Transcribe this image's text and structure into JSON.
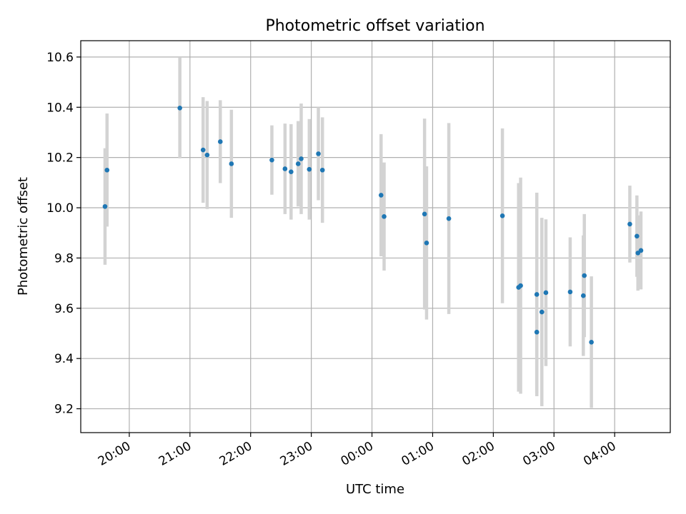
{
  "chart_data": {
    "type": "scatter",
    "title": "Photometric offset variation",
    "xlabel": "UTC time",
    "ylabel": "Photometric offset",
    "x_unit": "UTC time (hh:mm)",
    "x_ticks": [
      "20:00",
      "21:00",
      "22:00",
      "23:00",
      "00:00",
      "01:00",
      "02:00",
      "03:00",
      "04:00"
    ],
    "y_ticks": [
      "9.2",
      "9.4",
      "9.6",
      "9.8",
      "10.0",
      "10.2",
      "10.4",
      "10.6"
    ],
    "xlim": [
      "19:12",
      "04:55"
    ],
    "ylim": [
      9.105,
      10.665
    ],
    "grid": true,
    "legend": "none",
    "colors": {
      "point": "#1f77b4",
      "errorbar": "#d3d3d3"
    },
    "points": [
      {
        "x": "19:36",
        "y": 10.005,
        "yerr": 0.232
      },
      {
        "x": "19:38",
        "y": 10.15,
        "yerr": 0.225
      },
      {
        "x": "20:50",
        "y": 10.397,
        "yerr": 0.2
      },
      {
        "x": "21:13",
        "y": 10.23,
        "yerr": 0.21
      },
      {
        "x": "21:17",
        "y": 10.21,
        "yerr": 0.215
      },
      {
        "x": "21:30",
        "y": 10.263,
        "yerr": 0.165
      },
      {
        "x": "21:41",
        "y": 10.175,
        "yerr": 0.215
      },
      {
        "x": "22:21",
        "y": 10.19,
        "yerr": 0.138
      },
      {
        "x": "22:34",
        "y": 10.155,
        "yerr": 0.18
      },
      {
        "x": "22:40",
        "y": 10.143,
        "yerr": 0.19
      },
      {
        "x": "22:47",
        "y": 10.175,
        "yerr": 0.17
      },
      {
        "x": "22:50",
        "y": 10.195,
        "yerr": 0.22
      },
      {
        "x": "22:58",
        "y": 10.153,
        "yerr": 0.2
      },
      {
        "x": "23:07",
        "y": 10.215,
        "yerr": 0.185
      },
      {
        "x": "23:11",
        "y": 10.15,
        "yerr": 0.21
      },
      {
        "x": "00:09",
        "y": 10.05,
        "yerr": 0.243
      },
      {
        "x": "00:12",
        "y": 9.965,
        "yerr": 0.215
      },
      {
        "x": "00:52",
        "y": 9.975,
        "yerr": 0.38
      },
      {
        "x": "00:54",
        "y": 9.86,
        "yerr": 0.305
      },
      {
        "x": "01:16",
        "y": 9.957,
        "yerr": 0.38
      },
      {
        "x": "02:09",
        "y": 9.968,
        "yerr": 0.348
      },
      {
        "x": "02:25",
        "y": 9.683,
        "yerr": 0.415
      },
      {
        "x": "02:27",
        "y": 9.69,
        "yerr": 0.43
      },
      {
        "x": "02:43",
        "y": 9.655,
        "yerr": 0.405
      },
      {
        "x": "02:43",
        "y": 9.505,
        "yerr": 0.245
      },
      {
        "x": "02:48",
        "y": 9.585,
        "yerr": 0.375
      },
      {
        "x": "02:52",
        "y": 9.662,
        "yerr": 0.292
      },
      {
        "x": "03:16",
        "y": 9.665,
        "yerr": 0.217
      },
      {
        "x": "03:29",
        "y": 9.65,
        "yerr": 0.24
      },
      {
        "x": "03:30",
        "y": 9.73,
        "yerr": 0.245
      },
      {
        "x": "03:37",
        "y": 9.465,
        "yerr": 0.262
      },
      {
        "x": "04:15",
        "y": 9.935,
        "yerr": 0.153
      },
      {
        "x": "04:22",
        "y": 9.887,
        "yerr": 0.162
      },
      {
        "x": "04:23",
        "y": 9.82,
        "yerr": 0.15
      },
      {
        "x": "04:26",
        "y": 9.83,
        "yerr": 0.155
      }
    ]
  }
}
